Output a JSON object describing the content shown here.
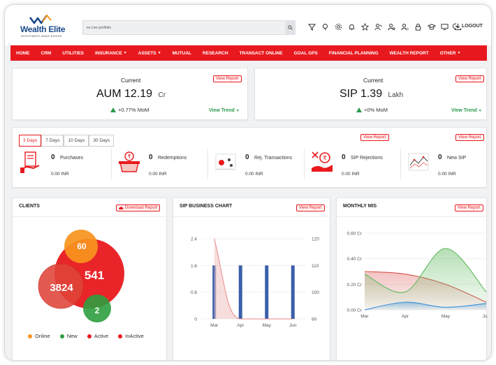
{
  "header": {
    "logo_name": "Wealth Elite",
    "logo_tagline": "INVESTMENT MADE EASIER",
    "search_value": "ex.Live portfolio",
    "logout_label": "LOGOUT",
    "icons": [
      "filter-icon",
      "bulb-icon",
      "gear-icon",
      "bell-icon",
      "star-icon",
      "user-edit-icon",
      "user-search-icon",
      "user-settings-icon",
      "lock-icon",
      "graduation-cap-icon",
      "monitor-icon",
      "download-icon"
    ]
  },
  "nav": {
    "items": [
      {
        "label": "HOME",
        "caret": false
      },
      {
        "label": "CRM",
        "caret": false
      },
      {
        "label": "UTILITIES",
        "caret": false
      },
      {
        "label": "INSURANCE",
        "caret": true
      },
      {
        "label": "ASSETS",
        "caret": true
      },
      {
        "label": "MUTUAL",
        "caret": false
      },
      {
        "label": "RESEARCH",
        "caret": false
      },
      {
        "label": "TRANSACT ONLINE",
        "caret": false
      },
      {
        "label": "GOAL GPS",
        "caret": false
      },
      {
        "label": "FINANCIAL PLANNING",
        "caret": false
      },
      {
        "label": "WEALTH REPORT",
        "caret": false
      },
      {
        "label": "OTHER",
        "caret": true
      }
    ]
  },
  "aum": {
    "label": "Current",
    "name": "AUM",
    "value": "12.19",
    "unit": "Cr",
    "mom": "+0.77% MoM",
    "view_report": "View Report",
    "view_trend": "View Trend"
  },
  "sip": {
    "label": "Current",
    "name": "SIP",
    "value": "1.39",
    "unit": "Lakh",
    "mom": "+0% MoM",
    "view_report": "View Report",
    "view_trend": "View Trend"
  },
  "transactions": {
    "tabs": [
      "3 Days",
      "7 Days",
      "10 Days",
      "30 Days"
    ],
    "active_tab": 0,
    "report_left": "View Report",
    "report_right": "View Report",
    "items": [
      {
        "count": "0",
        "label": "Purchases",
        "amount": "0.00 INR"
      },
      {
        "count": "0",
        "label": "Redemptions",
        "amount": "0.00 INR"
      },
      {
        "count": "0",
        "label": "Rej. Transactions",
        "amount": "0.00 INR"
      },
      {
        "count": "0",
        "label": "SIP Rejections",
        "amount": "0.00 INR"
      },
      {
        "count": "0",
        "label": "New SIP",
        "amount": "0.00 INR"
      }
    ]
  },
  "clients": {
    "title": "CLIENTS",
    "download": "Download Report",
    "bubbles": {
      "online": "60",
      "active": "541",
      "inactive": "3824",
      "new": "2"
    },
    "legend": [
      {
        "label": "Online",
        "color": "#f7941d"
      },
      {
        "label": "New",
        "color": "#2e9e3e"
      },
      {
        "label": "Active",
        "color": "#e8191e"
      },
      {
        "label": "InActive",
        "color": "#e8191e"
      }
    ]
  },
  "sip_chart": {
    "title": "SIP BUSINESS CHART",
    "view_report": "View Report",
    "chart_data": {
      "type": "bar",
      "categories": [
        "Mar",
        "Apr",
        "May",
        "Jun"
      ],
      "series": [
        {
          "values": [
            110,
            110,
            110,
            110
          ],
          "axis": "right",
          "color": "#3a5faa"
        },
        {
          "values": [
            2.4,
            0,
            0,
            0
          ],
          "axis": "left",
          "color": "#e88a8a",
          "style": "area-line"
        }
      ],
      "y_left_ticks": [
        "0",
        "0.8",
        "1.6",
        "2.4"
      ],
      "y_right_ticks": [
        "90",
        "100",
        "110",
        "120"
      ],
      "y_left_range": [
        0,
        2.4
      ],
      "y_right_range": [
        90,
        120
      ]
    }
  },
  "monthly_mis": {
    "title": "MONTHLY MIS",
    "view_report": "View Report",
    "chart_data": {
      "type": "area",
      "categories": [
        "Mar",
        "Apr",
        "May",
        "Jun"
      ],
      "y_ticks": [
        "0.00 Cr",
        "0.20 Cr",
        "0.40 Cr",
        "0.60 Cr"
      ],
      "ylim": [
        0,
        0.6
      ],
      "series": [
        {
          "values": [
            0.3,
            0.28,
            0.2,
            0.06
          ],
          "color": "#d9534f"
        },
        {
          "values": [
            0.28,
            0.14,
            0.48,
            0.14
          ],
          "color": "#5cb85c"
        },
        {
          "values": [
            0.0,
            0.06,
            0.02,
            0.05
          ],
          "color": "#3a8fd9"
        }
      ]
    }
  }
}
